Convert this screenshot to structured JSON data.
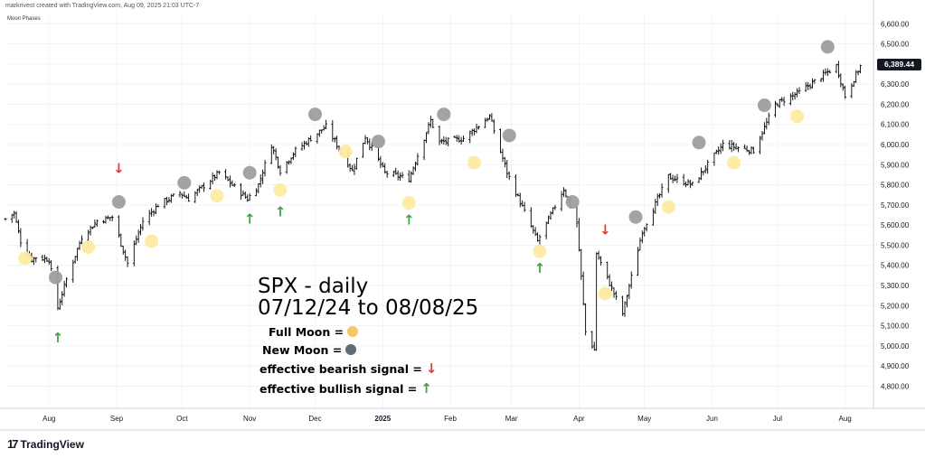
{
  "header": {
    "credit": "markrivest created with TradingView.com, Aug 09, 2025 21:03 UTC-7"
  },
  "indicator": {
    "name": "Moon Phases"
  },
  "brand": {
    "name": "TradingView"
  },
  "annotation": {
    "line1": "SPX - daily",
    "line2": "07/12/24 to 08/08/25"
  },
  "legend": {
    "full_moon": "Full Moon =",
    "new_moon": "New Moon =",
    "bearish": "effective bearish signal =",
    "bullish": "effective bullish signal ="
  },
  "colors": {
    "full_moon": "#fdeba0",
    "new_moon": "#9e9e9e",
    "bearish": "#e53935",
    "bullish": "#43a047",
    "bar": "#000000",
    "legend_full": "#f7c667",
    "legend_new": "#616a75"
  },
  "chart_data": {
    "type": "bar",
    "series_name": "SPX",
    "y_ticks": [
      4800,
      4900,
      5000,
      5100,
      5200,
      5300,
      5400,
      5500,
      5600,
      5700,
      5800,
      5900,
      6000,
      6100,
      6200,
      6300,
      6400,
      6500,
      6600
    ],
    "y_tick_labels": [
      "4,800.00",
      "4,900.00",
      "5,000.00",
      "5,100.00",
      "5,200.00",
      "5,300.00",
      "5,400.00",
      "5,500.00",
      "5,600.00",
      "5,700.00",
      "5,800.00",
      "5,900.00",
      "6,000.00",
      "6,100.00",
      "6,200.00",
      "6,300.00",
      "6,400.00",
      "6,500.00",
      "6,600.00"
    ],
    "ylim": [
      4690,
      6655
    ],
    "xlim": [
      "2024-07-12",
      "2025-08-14"
    ],
    "x_ticks": [
      {
        "date": "2024-08-01",
        "label": "Aug"
      },
      {
        "date": "2024-09-01",
        "label": "Sep"
      },
      {
        "date": "2024-10-01",
        "label": "Oct"
      },
      {
        "date": "2024-11-01",
        "label": "Nov"
      },
      {
        "date": "2024-12-01",
        "label": "Dec"
      },
      {
        "date": "2025-01-01",
        "label": "2025"
      },
      {
        "date": "2025-02-01",
        "label": "Feb"
      },
      {
        "date": "2025-03-01",
        "label": "Mar"
      },
      {
        "date": "2025-04-01",
        "label": "Apr"
      },
      {
        "date": "2025-05-01",
        "label": "May"
      },
      {
        "date": "2025-06-01",
        "label": "Jun"
      },
      {
        "date": "2025-07-01",
        "label": "Jul"
      },
      {
        "date": "2025-08-01",
        "label": "Aug"
      }
    ],
    "last_price": 6389.44,
    "last_price_label": "6,389.44",
    "anchors": [
      [
        "2024-07-12",
        5630
      ],
      [
        "2024-07-16",
        5660
      ],
      [
        "2024-07-19",
        5520
      ],
      [
        "2024-07-24",
        5430
      ],
      [
        "2024-07-26",
        5440
      ],
      [
        "2024-08-01",
        5430
      ],
      [
        "2024-08-05",
        5190
      ],
      [
        "2024-08-09",
        5330
      ],
      [
        "2024-08-16",
        5540
      ],
      [
        "2024-08-23",
        5620
      ],
      [
        "2024-08-30",
        5640
      ],
      [
        "2024-09-06",
        5410
      ],
      [
        "2024-09-13",
        5620
      ],
      [
        "2024-09-20",
        5700
      ],
      [
        "2024-09-30",
        5760
      ],
      [
        "2024-10-04",
        5730
      ],
      [
        "2024-10-18",
        5860
      ],
      [
        "2024-10-31",
        5730
      ],
      [
        "2024-11-05",
        5800
      ],
      [
        "2024-11-11",
        6000
      ],
      [
        "2024-11-15",
        5870
      ],
      [
        "2024-11-22",
        5970
      ],
      [
        "2024-12-06",
        6090
      ],
      [
        "2024-12-18",
        5870
      ],
      [
        "2024-12-24",
        6040
      ],
      [
        "2025-01-02",
        5860
      ],
      [
        "2025-01-13",
        5830
      ],
      [
        "2025-01-23",
        6120
      ],
      [
        "2025-01-27",
        6010
      ],
      [
        "2025-02-07",
        6030
      ],
      [
        "2025-02-19",
        6140
      ],
      [
        "2025-02-27",
        5860
      ],
      [
        "2025-03-13",
        5520
      ],
      [
        "2025-03-25",
        5780
      ],
      [
        "2025-03-31",
        5610
      ],
      [
        "2025-04-04",
        5070
      ],
      [
        "2025-04-08",
        4980
      ],
      [
        "2025-04-09",
        5460
      ],
      [
        "2025-04-21",
        5160
      ],
      [
        "2025-04-30",
        5570
      ],
      [
        "2025-05-12",
        5840
      ],
      [
        "2025-05-23",
        5800
      ],
      [
        "2025-06-06",
        6000
      ],
      [
        "2025-06-20",
        5970
      ],
      [
        "2025-06-30",
        6200
      ],
      [
        "2025-07-11",
        6260
      ],
      [
        "2025-07-28",
        6390
      ],
      [
        "2025-08-01",
        6240
      ],
      [
        "2025-08-08",
        6389
      ]
    ],
    "full_moons": [
      {
        "date": "2024-07-21",
        "price": 5435
      },
      {
        "date": "2024-08-19",
        "price": 5490
      },
      {
        "date": "2024-09-17",
        "price": 5520
      },
      {
        "date": "2024-10-17",
        "price": 5745
      },
      {
        "date": "2024-11-15",
        "price": 5775
      },
      {
        "date": "2024-12-15",
        "price": 5965
      },
      {
        "date": "2025-01-13",
        "price": 5710
      },
      {
        "date": "2025-02-12",
        "price": 5910
      },
      {
        "date": "2025-03-14",
        "price": 5470
      },
      {
        "date": "2025-04-13",
        "price": 5260
      },
      {
        "date": "2025-05-12",
        "price": 5690
      },
      {
        "date": "2025-06-11",
        "price": 5910
      },
      {
        "date": "2025-07-10",
        "price": 6140
      }
    ],
    "new_moons": [
      {
        "date": "2024-08-04",
        "price": 5340
      },
      {
        "date": "2024-09-02",
        "price": 5715
      },
      {
        "date": "2024-10-02",
        "price": 5810
      },
      {
        "date": "2024-11-01",
        "price": 5860
      },
      {
        "date": "2024-12-01",
        "price": 6150
      },
      {
        "date": "2024-12-30",
        "price": 6015
      },
      {
        "date": "2025-01-29",
        "price": 6150
      },
      {
        "date": "2025-02-28",
        "price": 6045
      },
      {
        "date": "2025-03-29",
        "price": 5715
      },
      {
        "date": "2025-04-27",
        "price": 5640
      },
      {
        "date": "2025-05-26",
        "price": 6010
      },
      {
        "date": "2025-06-25",
        "price": 6195
      },
      {
        "date": "2025-07-24",
        "price": 6485
      }
    ],
    "bullish_signals": [
      {
        "date": "2024-08-05",
        "price": 5040
      },
      {
        "date": "2024-11-01",
        "price": 5630
      },
      {
        "date": "2024-11-15",
        "price": 5665
      },
      {
        "date": "2025-01-13",
        "price": 5625
      },
      {
        "date": "2025-03-14",
        "price": 5385
      }
    ],
    "bearish_signals": [
      {
        "date": "2024-09-02",
        "price": 5880
      },
      {
        "date": "2025-04-13",
        "price": 5575
      }
    ]
  }
}
